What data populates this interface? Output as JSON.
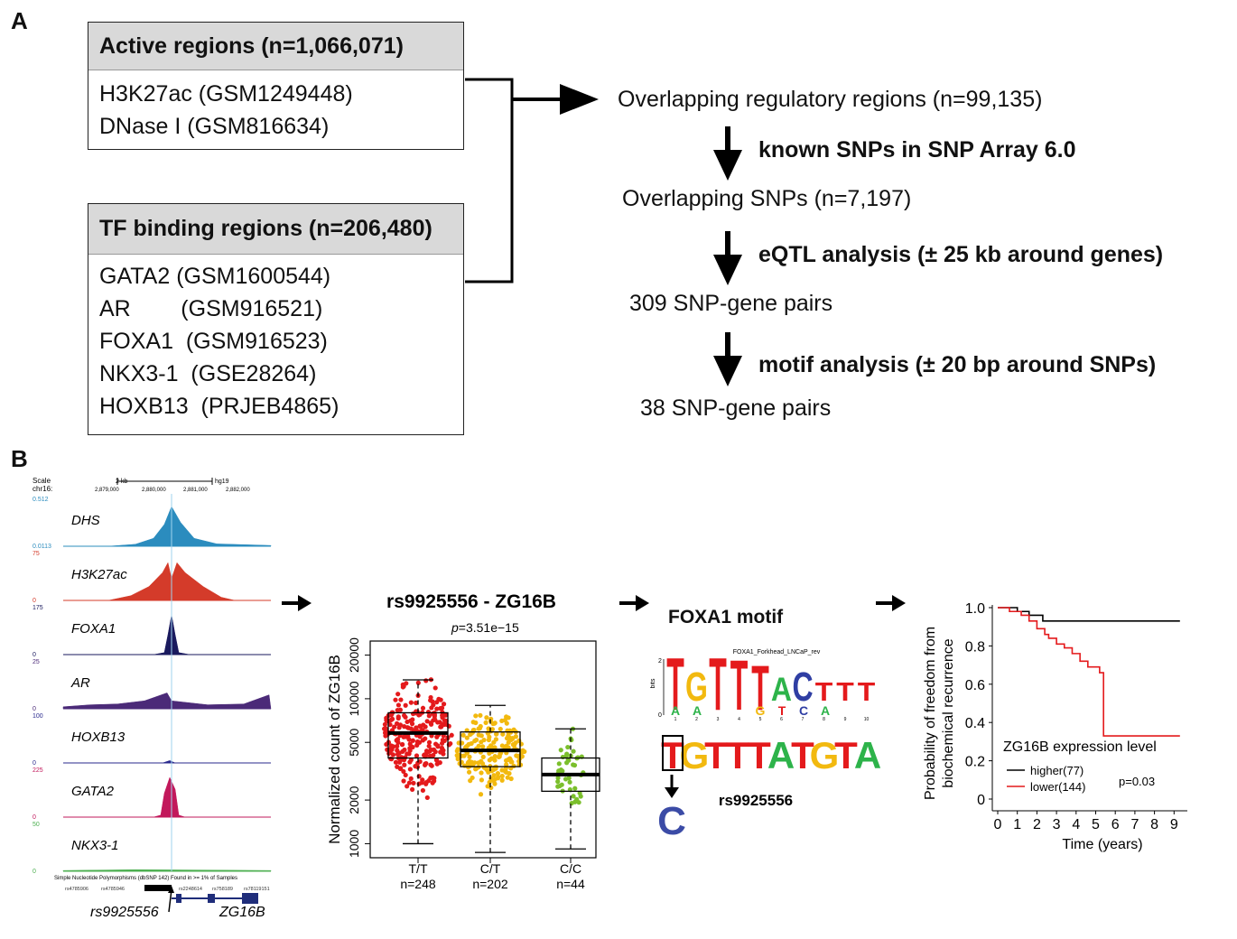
{
  "panelA": {
    "letter": "A",
    "active": {
      "title": "Active regions  (n=1,066,071)",
      "lines": [
        "H3K27ac (GSM1249448)",
        "DNase I (GSM816634)"
      ]
    },
    "tf": {
      "title": "TF binding regions (n=206,480)",
      "lines": [
        "GATA2 (GSM1600544)",
        "AR        (GSM916521)",
        "FOXA1  (GSM916523)",
        "NKX3-1  (GSE28264)",
        "HOXB13  (PRJEB4865)"
      ]
    },
    "flow": {
      "step1": "Overlapping regulatory regions (n=99,135)",
      "arrow1": "known SNPs in SNP Array 6.0",
      "step2": "Overlapping SNPs (n=7,197)",
      "arrow2": "eQTL analysis  (± 25 kb around genes)",
      "step3": "309 SNP-gene pairs",
      "arrow3": "motif analysis (± 20 bp around SNPs)",
      "step4": "38 SNP-gene pairs"
    }
  },
  "panelB": {
    "letter": "B",
    "browser": {
      "scale_label": "Scale",
      "chr_label": "chr16:",
      "scale_text": "2 kb",
      "assembly": "hg19",
      "coords": [
        "2,879,000",
        "2,880,000",
        "2,881,000",
        "2,882,000"
      ],
      "tracks": [
        {
          "name": "DHS",
          "top": "0.512",
          "bottom": "0.0113",
          "color": "#2b8cbe"
        },
        {
          "name": "H3K27ac",
          "top": "75",
          "bottom": "0",
          "color": "#d43b2a"
        },
        {
          "name": "FOXA1",
          "top": "175",
          "bottom": "0",
          "color": "#1a1a5e"
        },
        {
          "name": "AR",
          "top": "25",
          "bottom": "0",
          "color": "#4b2a78"
        },
        {
          "name": "HOXB13",
          "top": "100",
          "bottom": "0",
          "color": "#2a2a8e"
        },
        {
          "name": "GATA2",
          "top": "225",
          "bottom": "0",
          "color": "#c2185b"
        },
        {
          "name": "NKX3-1",
          "top": "50",
          "bottom": "0",
          "color": "#4caf50"
        }
      ],
      "snp_header": "Simple Nucleotide Polymorphisms (dbSNP 142) Found in >= 1% of Samples",
      "snp_ids": [
        "rs4785906",
        "rs4785946",
        "rs9925556",
        "rs2248614",
        "rs758189",
        "rs78119151"
      ],
      "snp_label": "rs9925556",
      "gene_label": "ZG16B"
    },
    "boxplot": {
      "title": "rs9925556 - ZG16B",
      "pvalue_prefix": "p",
      "pvalue_rest": "=3.51e−15",
      "ylabel": "Normalized  count of  ZG16B",
      "yticks": [
        "1000",
        "2000",
        "5000",
        "10000",
        "20000"
      ],
      "groups": [
        {
          "label": "T/T",
          "n": "n=248",
          "color": "#e41a1c"
        },
        {
          "label": "C/T",
          "n": "n=202",
          "color": "#f2b90f"
        },
        {
          "label": "C/C",
          "n": "n=44",
          "color": "#7bbf2c"
        }
      ]
    },
    "motif": {
      "title": "FOXA1 motif",
      "logo_title": "FOXA1_Forkhead_LNCaP_rev",
      "logo_axis": "bits",
      "logo_top": "2",
      "logo_bottom": "0",
      "logo_letters": "TGTTTACTTT",
      "logo_under": "AAGTCA",
      "sequence": [
        "T",
        "G",
        "T",
        "T",
        "T",
        "A",
        "T",
        "G",
        "T",
        "A"
      ],
      "alt_allele": "C",
      "snp_label": "rs9925556"
    },
    "survival": {
      "ylabel1": "Probability of  freedom from",
      "ylabel2": "biochemical recurrence",
      "xlabel": "Time (years)",
      "xticks": [
        "0",
        "1",
        "2",
        "3",
        "4",
        "5",
        "6",
        "7",
        "8",
        "9"
      ],
      "yticks": [
        "0",
        "0.2",
        "0.4",
        "0.6",
        "0.8",
        "1.0"
      ],
      "legend_title": "ZG16B expression level",
      "legend_higher": "higher(77)",
      "legend_lower": "lower(144)",
      "pvalue": "p=0.03"
    }
  },
  "chart_data": [
    {
      "type": "scatter",
      "title": "rs9925556 - ZG16B",
      "ylabel": "Normalized  count of  ZG16B",
      "yscale": "log",
      "ylim": [
        800,
        25000
      ],
      "categories": [
        "T/T",
        "C/T",
        "C/C"
      ],
      "box": [
        {
          "group": "T/T",
          "median": 5800,
          "q1": 3900,
          "q3": 8000,
          "whisker_low": 1000,
          "whisker_high": 13500
        },
        {
          "group": "C/T",
          "median": 4400,
          "q1": 3400,
          "q3": 5900,
          "whisker_low": 870,
          "whisker_high": 9000
        },
        {
          "group": "C/C",
          "median": 3000,
          "q1": 2300,
          "q3": 3900,
          "whisker_low": 920,
          "whisker_high": 6200
        }
      ]
    },
    {
      "type": "line",
      "xlabel": "Time (years)",
      "ylabel": "Probability of  freedom from biochemical recurrence",
      "xlim": [
        0,
        9.5
      ],
      "ylim": [
        0,
        1.0
      ],
      "series": [
        {
          "name": "higher(77)",
          "color": "#000000",
          "x": [
            0,
            0.8,
            1.0,
            1.6,
            2.3,
            9.3
          ],
          "y": [
            1.0,
            1.0,
            0.98,
            0.96,
            0.93,
            0.93
          ]
        },
        {
          "name": "lower(144)",
          "color": "#e41a1c",
          "x": [
            0,
            0.6,
            1.2,
            1.6,
            2.0,
            2.4,
            2.6,
            3.0,
            3.4,
            3.8,
            4.2,
            4.6,
            5.2,
            5.4,
            9.3
          ],
          "y": [
            1.0,
            0.98,
            0.96,
            0.93,
            0.89,
            0.86,
            0.84,
            0.81,
            0.79,
            0.76,
            0.72,
            0.69,
            0.66,
            0.33,
            0.33
          ]
        }
      ]
    }
  ]
}
